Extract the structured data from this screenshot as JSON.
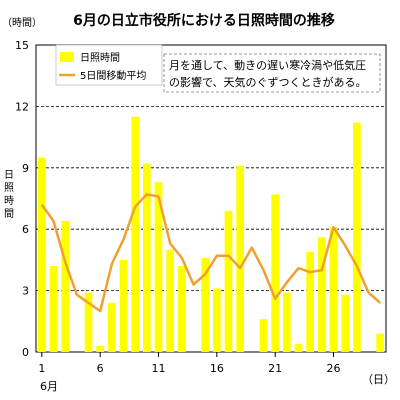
{
  "chart_data": {
    "type": "bar",
    "title": "6月の日立市役所における日照時間の推移",
    "ylabel_unit": "（時間）",
    "ylabel": "日照時間",
    "xlabel_unit": "（日）",
    "xlabel_month": "6月",
    "ylim": [
      0,
      15
    ],
    "yticks": [
      0,
      3,
      6,
      9,
      12,
      15
    ],
    "grid": true,
    "xticks": [
      1,
      6,
      11,
      16,
      21,
      26
    ],
    "days": [
      1,
      2,
      3,
      4,
      5,
      6,
      7,
      8,
      9,
      10,
      11,
      12,
      13,
      14,
      15,
      16,
      17,
      18,
      19,
      20,
      21,
      22,
      23,
      24,
      25,
      26,
      27,
      28,
      29,
      30
    ],
    "series": [
      {
        "name": "日照時間",
        "kind": "bar",
        "color": "#ffff00",
        "values": [
          9.5,
          4.2,
          6.4,
          0,
          2.9,
          0.3,
          2.4,
          4.5,
          11.5,
          9.2,
          8.3,
          5.0,
          4.2,
          0,
          4.6,
          3.1,
          6.9,
          9.1,
          0,
          1.6,
          7.7,
          2.9,
          0.4,
          4.9,
          5.6,
          6.1,
          2.8,
          11.2,
          0,
          0.9
        ]
      },
      {
        "name": "5日間移動平均",
        "kind": "line",
        "color": "#f0a030",
        "values": [
          7.2,
          6.4,
          4.4,
          2.8,
          2.4,
          2.0,
          4.3,
          5.5,
          7.1,
          7.7,
          7.6,
          5.3,
          4.6,
          3.3,
          3.8,
          4.7,
          4.7,
          4.1,
          5.1,
          4.0,
          2.6,
          3.4,
          4.1,
          3.9,
          4.0,
          6.1,
          5.2,
          4.2,
          2.9,
          2.4
        ]
      }
    ],
    "legend_position": "top-left",
    "annotation": "月を通して、動きの遅い寒冷渦や低気圧の影響で、天気のぐずつくときがある。",
    "annotation_lines": [
      "月を通して、動きの遅い寒冷渦や低気圧",
      "の影響で、天気のぐずつくときがある。"
    ]
  }
}
